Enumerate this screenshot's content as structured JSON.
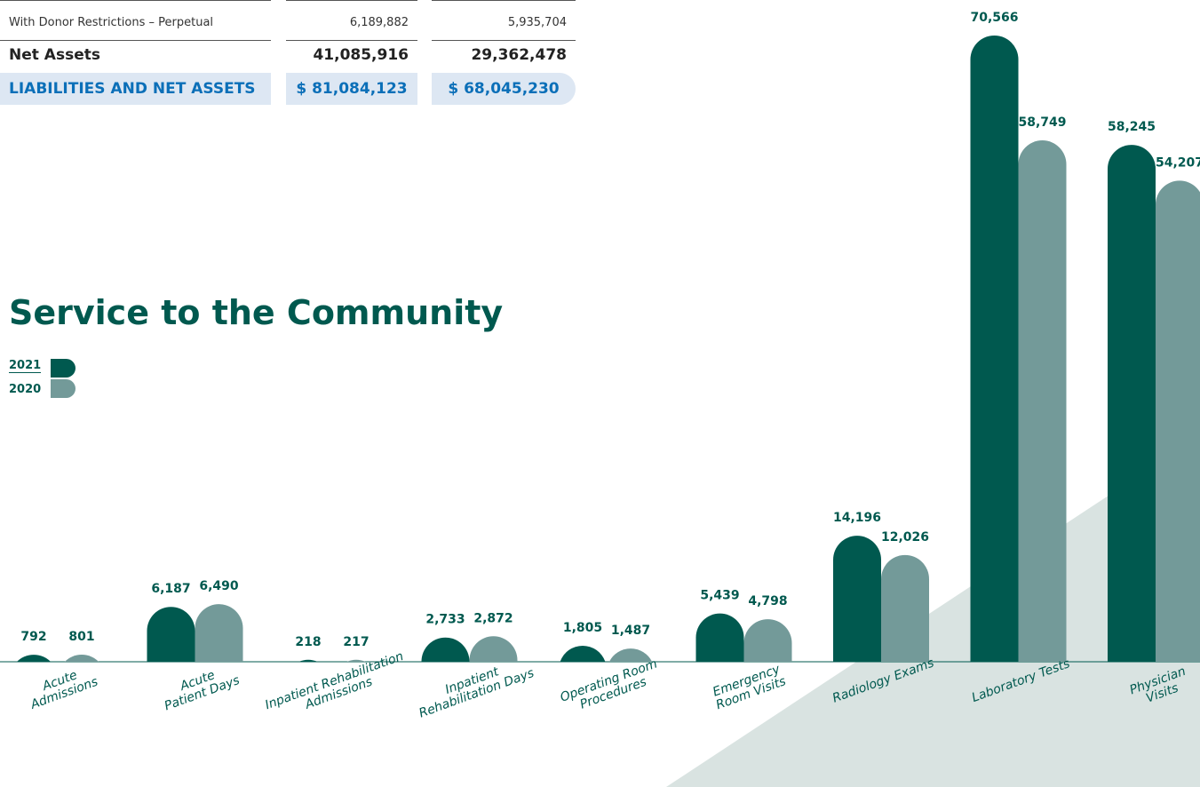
{
  "table": {
    "rows": [
      [
        "With Donor Restrictions – Perpetual",
        "6,189,882",
        "5,935,704"
      ],
      [
        "Net Assets",
        "41,085,916",
        "29,362,478"
      ],
      [
        "LIABILITIES AND NET ASSETS",
        "$ 81,084,123",
        "$ 68,045,230"
      ]
    ]
  },
  "chart_data": {
    "type": "bar",
    "title": "Service to the Community",
    "categories": [
      "Acute\nAdmissions",
      "Acute\nPatient Days",
      "Inpatient Rehabilitation\nAdmissions",
      "Inpatient\nRehabilitation Days",
      "Operating Room\nProcedures",
      "Emergency\nRoom Visits",
      "Radiology Exams",
      "Laboratory Tests",
      "Physician Visits"
    ],
    "series": [
      {
        "name": "2021",
        "color": "#00594f",
        "values": [
          792,
          6187,
          218,
          2733,
          1805,
          5439,
          14196,
          70566,
          58245
        ]
      },
      {
        "name": "2020",
        "color": "#739a99",
        "values": [
          801,
          6490,
          217,
          2872,
          1487,
          4798,
          12026,
          58749,
          54207
        ]
      }
    ]
  }
}
